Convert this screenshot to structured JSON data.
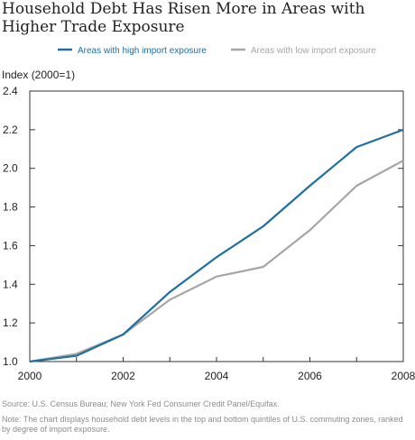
{
  "title": "Household Debt Has Risen More in Areas with Higher Trade Exposure",
  "source": "Source: U.S. Census Bureau; New York Fed Consumer Credit Panel/Equifax.",
  "note": "Note: The chart displays household debt levels in the top and bottom quintiles of U.S. commuting zones, ranked by degree of import exposure.",
  "colors": {
    "high": "#1f6fa3",
    "low": "#a6a6a6",
    "axis": "#333333"
  },
  "chart_data": {
    "type": "line",
    "title": "Household Debt Has Risen More in Areas with Higher Trade Exposure",
    "ylabel": "Index (2000=1)",
    "xlabel": "",
    "x": [
      2000,
      2001,
      2002,
      2003,
      2004,
      2005,
      2006,
      2007,
      2008
    ],
    "xticks": [
      "2000",
      "2002",
      "2004",
      "2006",
      "2008"
    ],
    "yticks": [
      "1.0",
      "1.2",
      "1.4",
      "1.6",
      "1.8",
      "2.0",
      "2.2",
      "2.4"
    ],
    "xlim": [
      2000,
      2008
    ],
    "ylim": [
      1.0,
      2.4
    ],
    "legend_position": "top",
    "series": [
      {
        "name": "Areas with high import exposure",
        "values": [
          1.0,
          1.03,
          1.14,
          1.36,
          1.54,
          1.7,
          1.91,
          2.11,
          2.2
        ]
      },
      {
        "name": "Areas with low import exposure",
        "values": [
          1.0,
          1.04,
          1.14,
          1.32,
          1.44,
          1.49,
          1.68,
          1.91,
          2.04
        ]
      }
    ]
  }
}
